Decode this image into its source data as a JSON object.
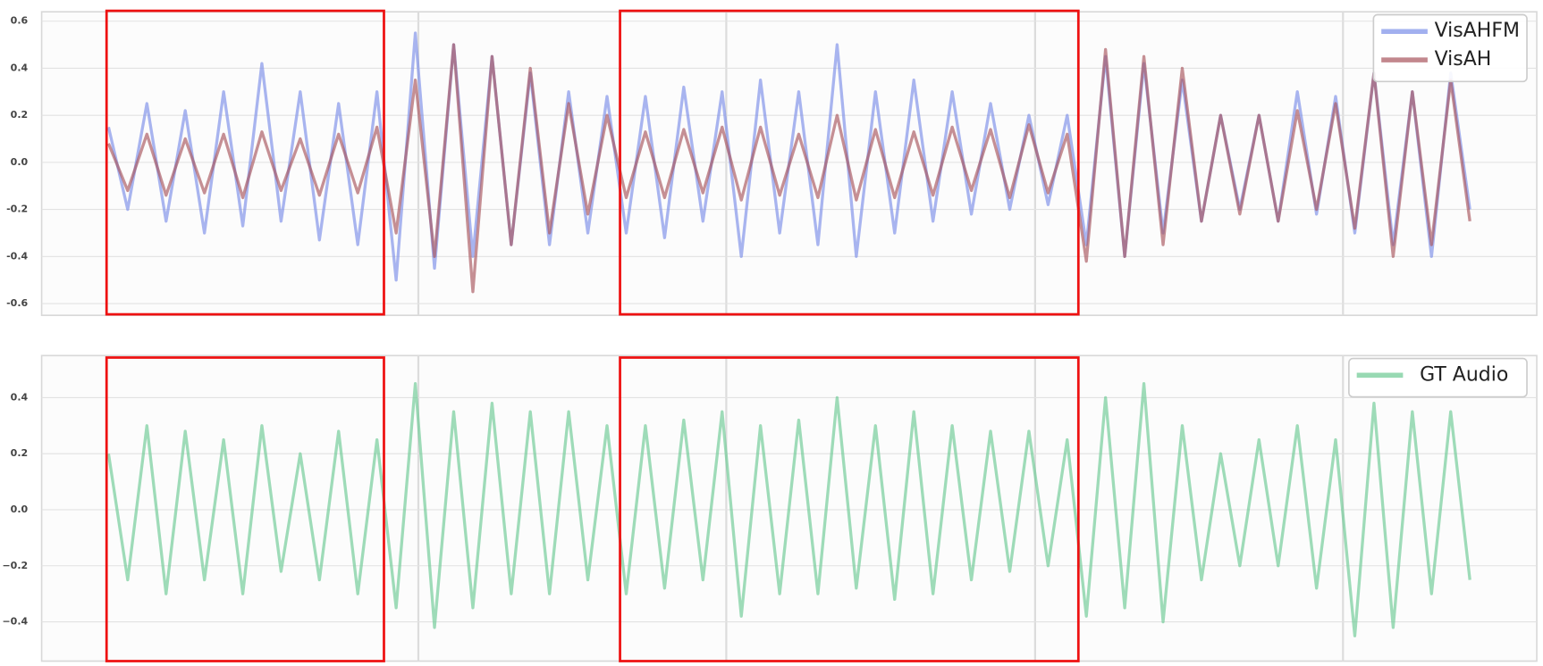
{
  "chart_data": [
    {
      "type": "line",
      "legend": "upper right",
      "grid": true,
      "ylim": [
        -0.65,
        0.64
      ],
      "yticks": [
        -0.6,
        -0.4,
        -0.2,
        {
          "value": 0,
          "label": "0.0"
        },
        0.2,
        0.4,
        0.6
      ],
      "series": [
        {
          "name": "VisAHFM",
          "color": "#7b8ee8",
          "values": [
            0.15,
            -0.2,
            0.25,
            -0.25,
            0.22,
            -0.3,
            0.3,
            -0.27,
            0.42,
            -0.25,
            0.3,
            -0.33,
            0.25,
            -0.35,
            0.3,
            -0.5,
            0.55,
            -0.45,
            0.5,
            -0.4,
            0.45,
            -0.35,
            0.38,
            -0.35,
            0.3,
            -0.3,
            0.28,
            -0.3,
            0.28,
            -0.32,
            0.32,
            -0.25,
            0.3,
            -0.4,
            0.35,
            -0.3,
            0.3,
            -0.35,
            0.5,
            -0.4,
            0.3,
            -0.3,
            0.35,
            -0.25,
            0.3,
            -0.22,
            0.25,
            -0.2,
            0.2,
            -0.18,
            0.2,
            -0.35,
            0.45,
            -0.4,
            0.42,
            -0.3,
            0.35,
            -0.25,
            0.2,
            -0.2,
            0.2,
            -0.25,
            0.3,
            -0.22,
            0.28,
            -0.3,
            0.38,
            -0.35,
            0.3,
            -0.4,
            0.38,
            -0.2
          ]
        },
        {
          "name": "VisAH",
          "color": "#a8545c",
          "values": [
            0.08,
            -0.12,
            0.12,
            -0.14,
            0.1,
            -0.13,
            0.12,
            -0.15,
            0.13,
            -0.12,
            0.1,
            -0.14,
            0.12,
            -0.13,
            0.15,
            -0.3,
            0.35,
            -0.4,
            0.5,
            -0.55,
            0.45,
            -0.35,
            0.4,
            -0.3,
            0.25,
            -0.22,
            0.2,
            -0.15,
            0.13,
            -0.15,
            0.14,
            -0.13,
            0.15,
            -0.16,
            0.15,
            -0.14,
            0.12,
            -0.15,
            0.2,
            -0.16,
            0.14,
            -0.15,
            0.13,
            -0.14,
            0.15,
            -0.12,
            0.14,
            -0.15,
            0.16,
            -0.13,
            0.12,
            -0.42,
            0.48,
            -0.4,
            0.45,
            -0.35,
            0.4,
            -0.25,
            0.2,
            -0.22,
            0.2,
            -0.25,
            0.22,
            -0.2,
            0.25,
            -0.28,
            0.38,
            -0.4,
            0.3,
            -0.35,
            0.35,
            -0.25
          ]
        }
      ]
    },
    {
      "type": "line",
      "legend": "upper right",
      "grid": true,
      "ylim": [
        -0.54,
        0.55
      ],
      "yticks": [
        {
          "value": -0.4,
          "label": "−0.4"
        },
        {
          "value": -0.2,
          "label": "−0.2"
        },
        {
          "value": 0,
          "label": "0.0"
        },
        0.2,
        0.4
      ],
      "series": [
        {
          "name": "GT Audio",
          "color": "#6cc993",
          "values": [
            0.2,
            -0.25,
            0.3,
            -0.3,
            0.28,
            -0.25,
            0.25,
            -0.3,
            0.3,
            -0.22,
            0.2,
            -0.25,
            0.28,
            -0.3,
            0.25,
            -0.35,
            0.45,
            -0.42,
            0.35,
            -0.35,
            0.38,
            -0.3,
            0.35,
            -0.3,
            0.35,
            -0.25,
            0.3,
            -0.3,
            0.3,
            -0.28,
            0.32,
            -0.25,
            0.35,
            -0.38,
            0.3,
            -0.3,
            0.32,
            -0.3,
            0.4,
            -0.28,
            0.3,
            -0.32,
            0.35,
            -0.3,
            0.3,
            -0.25,
            0.28,
            -0.22,
            0.28,
            -0.2,
            0.25,
            -0.38,
            0.4,
            -0.35,
            0.45,
            -0.4,
            0.3,
            -0.25,
            0.2,
            -0.2,
            0.25,
            -0.2,
            0.3,
            -0.28,
            0.25,
            -0.45,
            0.38,
            -0.42,
            0.35,
            -0.3,
            0.35,
            -0.25
          ]
        }
      ]
    }
  ]
}
